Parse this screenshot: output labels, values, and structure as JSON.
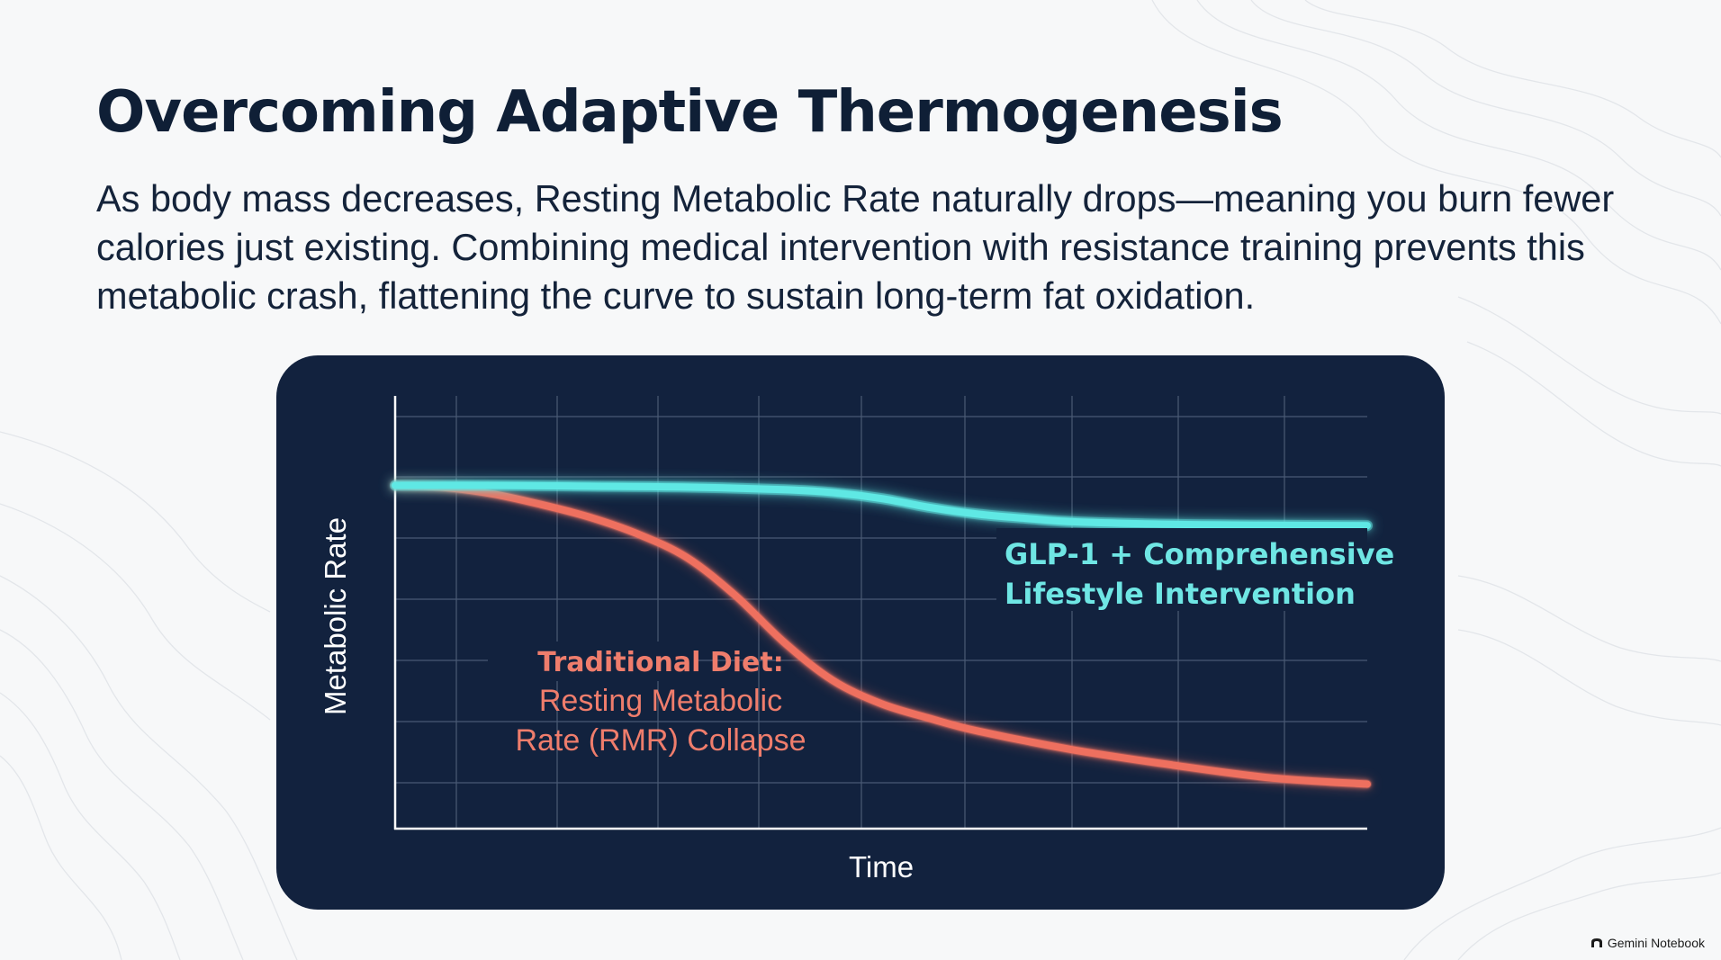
{
  "slide": {
    "title": "Overcoming Adaptive Thermogenesis",
    "body": "As body mass decreases, Resting Metabolic Rate naturally drops—meaning you burn fewer calories just existing. Combining medical intervention with resistance training prevents this metabolic crash, flattening the curve to sustain long-term fat oxidation."
  },
  "footer": {
    "brand": "Gemini Notebook",
    "brand_icon": "gemini-notebook-icon"
  },
  "colors": {
    "background": "#f7f8f9",
    "title": "#0f1f36",
    "panel": "#12223e",
    "grid": "#4a5a74",
    "axis": "#ffffff",
    "glp1_line": "#5fe8e4",
    "diet_line": "#ee6f5f",
    "glp1_label": "#6fe6e4",
    "diet_label": "#ef7d6c"
  },
  "chart_data": {
    "type": "line",
    "title": "",
    "xlabel": "Time",
    "ylabel": "Metabolic Rate",
    "xlim": [
      0,
      100
    ],
    "ylim": [
      0,
      100
    ],
    "grid": true,
    "ticks_shown": false,
    "series": [
      {
        "name": "GLP-1 + Comprehensive Lifestyle Intervention",
        "label_lines": [
          "GLP-1 + Comprehensive",
          "Lifestyle Intervention"
        ],
        "color": "#5fe8e4",
        "x": [
          0,
          10,
          20,
          30,
          40,
          45,
          50,
          55,
          60,
          65,
          70,
          80,
          90,
          100
        ],
        "y": [
          81,
          81,
          80.8,
          80.6,
          80,
          79.3,
          77.9,
          75.8,
          74.2,
          73.2,
          72.4,
          71.8,
          71.6,
          71.5
        ]
      },
      {
        "name": "Traditional Diet: Resting Metabolic Rate (RMR) Collapse",
        "label_lines": [
          "Traditional Diet:",
          "Resting Metabolic",
          "Rate (RMR) Collapse"
        ],
        "color": "#ee6f5f",
        "x": [
          0,
          5,
          10,
          15,
          20,
          25,
          30,
          35,
          40,
          45,
          50,
          55,
          60,
          70,
          80,
          90,
          100
        ],
        "y": [
          81,
          80.5,
          79,
          76.5,
          73.5,
          69.5,
          64,
          55,
          44,
          35,
          29.5,
          26,
          23,
          18.5,
          15,
          12,
          10.5
        ]
      }
    ]
  }
}
